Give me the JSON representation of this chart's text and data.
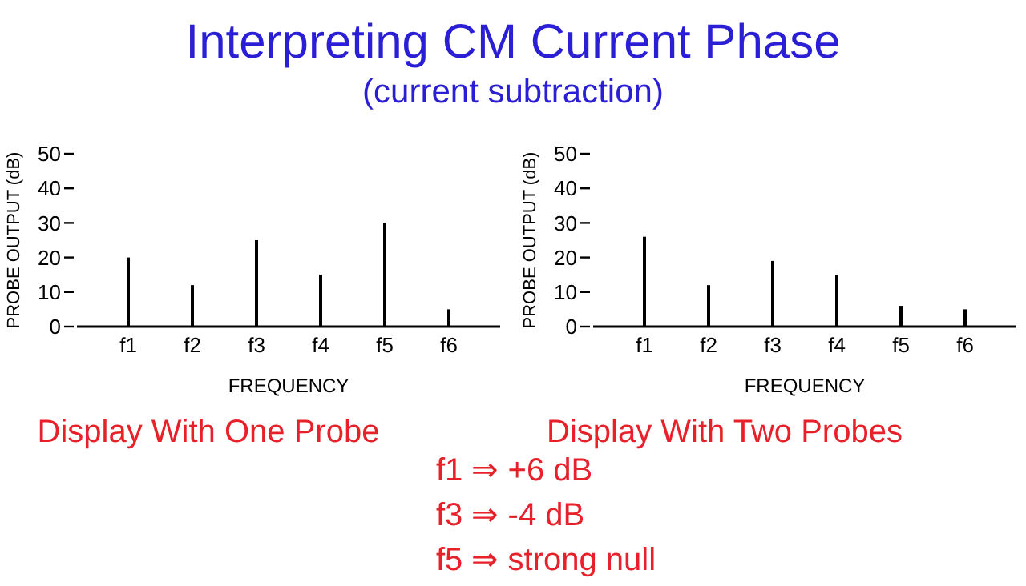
{
  "chart_data": [
    {
      "type": "bar",
      "title": "Interpreting CM Current Phase",
      "subtitle": "(current subtraction)",
      "xlabel": "FREQUENCY",
      "ylabel": "PROBE OUTPUT (dB)",
      "categories": [
        "f1",
        "f2",
        "f3",
        "f4",
        "f5",
        "f6"
      ],
      "values": [
        20,
        12,
        25,
        15,
        30,
        5
      ],
      "color": "#000000",
      "ylim": [
        0,
        50
      ],
      "yticks": [
        0,
        10,
        20,
        30,
        40,
        50
      ],
      "annotations": [
        "Display With One Probe",
        "f1 ⇒ +6 dB",
        "f3 ⇒ -4 dB",
        "f5 ⇒ strong null"
      ]
    },
    {
      "type": "bar",
      "xlabel": "FREQUENCY",
      "ylabel": "PROBE OUTPUT (dB)",
      "categories": [
        "f1",
        "f2",
        "f3",
        "f4",
        "f5",
        "f6"
      ],
      "values": [
        26,
        12,
        19,
        15,
        6,
        5
      ],
      "color": "#000000",
      "ylim": [
        0,
        50
      ],
      "yticks": [
        0,
        10,
        20,
        30,
        40,
        50
      ],
      "annotations": [
        "Display With Two Probes"
      ]
    }
  ]
}
